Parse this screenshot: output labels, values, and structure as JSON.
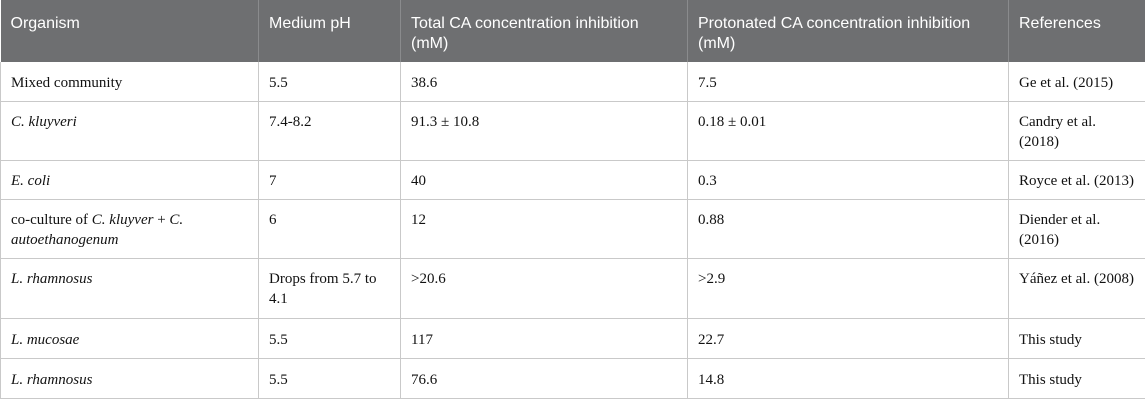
{
  "table": {
    "headers": [
      "Organism",
      "Medium pH",
      "Total CA concentration inhibition (mM)",
      "Protonated CA concentration inhibition (mM)",
      "References"
    ],
    "rows": [
      {
        "organism_plain": "Mixed community",
        "ph": "5.5",
        "total": "38.6",
        "protonated": "7.5",
        "reference": "Ge et al. (2015)"
      },
      {
        "organism_italic": "C. kluyveri",
        "ph": "7.4-8.2",
        "total": "91.3 ± 10.8",
        "protonated": "0.18 ± 0.01",
        "reference": "Candry et al. (2018)"
      },
      {
        "organism_italic": "E. coli",
        "ph": "7",
        "total": "40",
        "protonated": "0.3",
        "reference": "Royce et al. (2013)"
      },
      {
        "organism_prefix": "co-culture of ",
        "organism_italic_a": "C. kluyver",
        "organism_mid": " + ",
        "organism_italic_b": "C. autoethanogenum",
        "ph": "6",
        "total": "12",
        "protonated": "0.88",
        "reference": "Diender et al. (2016)"
      },
      {
        "organism_italic": "L. rhamnosus",
        "ph": "Drops from 5.7 to 4.1",
        "total": ">20.6",
        "protonated": ">2.9",
        "reference": "Yáñez et al. (2008)"
      },
      {
        "organism_italic": "L. mucosae",
        "ph": "5.5",
        "total": "117",
        "protonated": "22.7",
        "reference": "This study"
      },
      {
        "organism_italic": "L. rhamnosus",
        "ph": "5.5",
        "total": "76.6",
        "protonated": "14.8",
        "reference": "This study"
      }
    ]
  }
}
